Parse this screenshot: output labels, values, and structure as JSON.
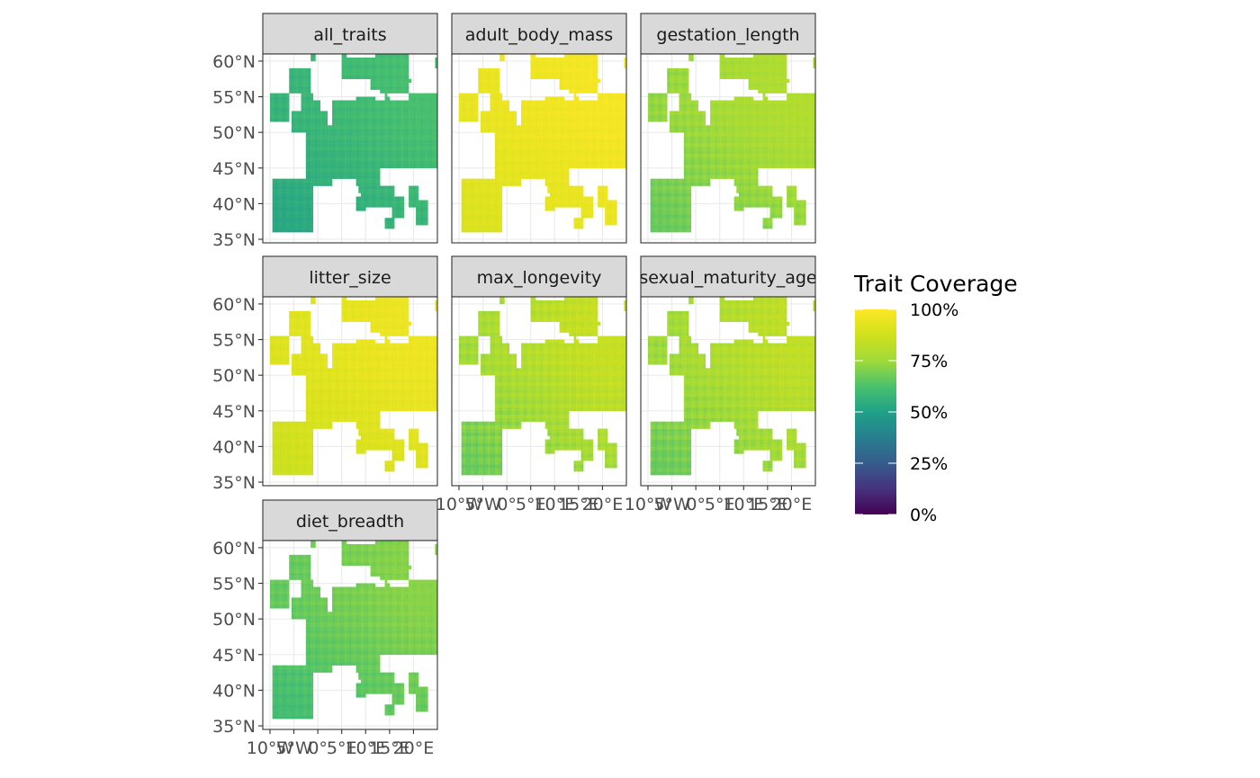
{
  "chart_data": {
    "type": "heatmap",
    "subtype": "faceted geographic raster map",
    "facets": [
      {
        "name": "all_traits",
        "level_low": 0.52,
        "level_high": 0.62
      },
      {
        "name": "adult_body_mass",
        "level_low": 0.9,
        "level_high": 0.98
      },
      {
        "name": "gestation_length",
        "level_low": 0.66,
        "level_high": 0.8
      },
      {
        "name": "litter_size",
        "level_low": 0.86,
        "level_high": 0.96
      },
      {
        "name": "max_longevity",
        "level_low": 0.66,
        "level_high": 0.86
      },
      {
        "name": "sexual_maturity_age",
        "level_low": 0.66,
        "level_high": 0.84
      },
      {
        "name": "diet_breadth",
        "level_low": 0.6,
        "level_high": 0.72
      }
    ],
    "y_ticks": [
      "60°N",
      "55°N",
      "50°N",
      "45°N",
      "40°N",
      "35°N"
    ],
    "y_tick_values": [
      60,
      55,
      50,
      45,
      40,
      35
    ],
    "x_ticks": [
      "10°W",
      "5°W",
      "0°",
      "5°E",
      "10°E",
      "15°E",
      "20°E"
    ],
    "x_tick_values": [
      -10,
      -5,
      0,
      5,
      10,
      15,
      20
    ],
    "xlim": [
      -11.5,
      25
    ],
    "ylim": [
      34.5,
      61
    ],
    "legend": {
      "title": "Trait Coverage",
      "placement": "right",
      "labels": [
        "100%",
        "75%",
        "50%",
        "25%",
        "0%"
      ],
      "stops": [
        1.0,
        0.75,
        0.5,
        0.25,
        0.0
      ],
      "colormap": "viridis"
    },
    "colors": {
      "strip_fill": "#d9d9d9",
      "panel_border": "#333333",
      "grid": "#ebebeb"
    }
  }
}
